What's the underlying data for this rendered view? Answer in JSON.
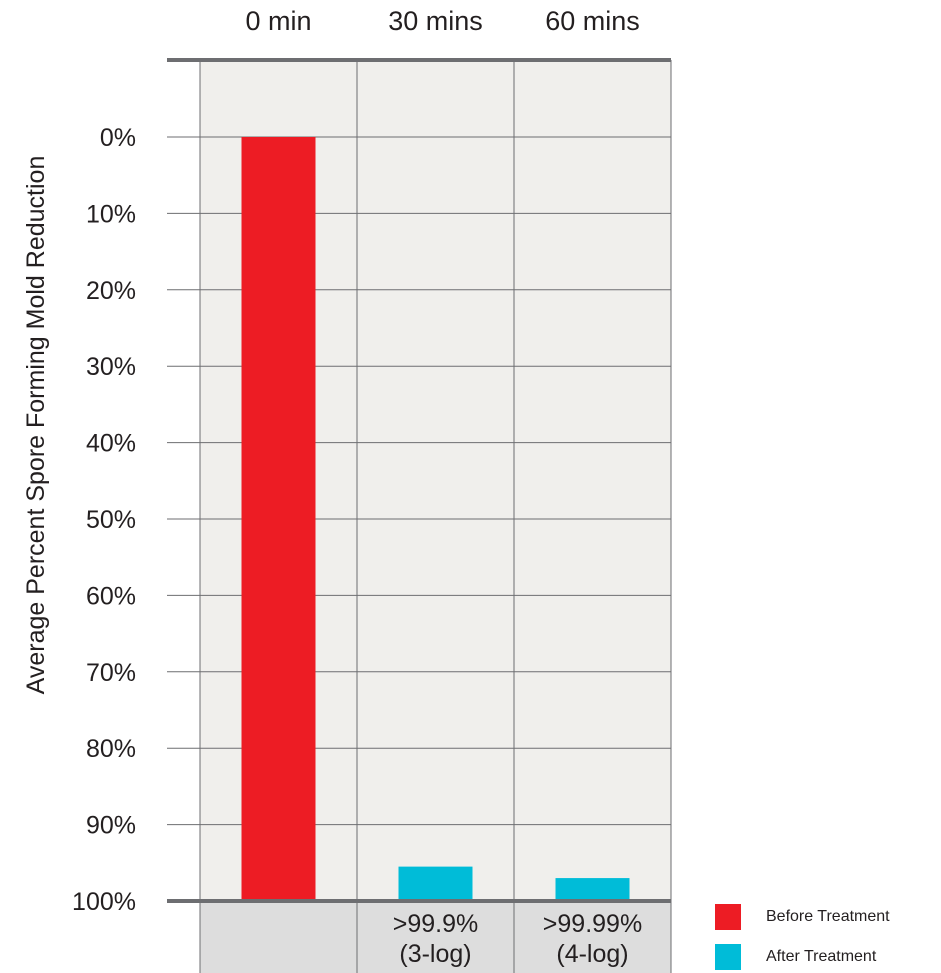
{
  "chart_data": {
    "type": "bar",
    "categories": [
      "0 min",
      "30 mins",
      "60 mins"
    ],
    "series": [
      {
        "name": "Before Treatment",
        "values": [
          100,
          null,
          null
        ]
      },
      {
        "name": "After Treatment",
        "values": [
          null,
          4.5,
          3.0
        ]
      }
    ],
    "ylabel": "Average Percent Spore Forming Mold Reduction",
    "xlabel": "",
    "title": "",
    "y_ticks": [
      "0%",
      "10%",
      "20%",
      "30%",
      "40%",
      "50%",
      "60%",
      "70%",
      "80%",
      "90%",
      "100%"
    ],
    "y_axis_inverted": true,
    "ylim": [
      0,
      100
    ],
    "grid": true,
    "legend_position": "bottom-right",
    "bottom_labels": [
      {
        "category": "30 mins",
        "lines": [
          ">99.9%",
          "(3-log)"
        ]
      },
      {
        "category": "60 mins",
        "lines": [
          ">99.99%",
          "(4-log)"
        ]
      }
    ]
  },
  "legend": [
    {
      "label": "Before Treatment",
      "color": "#ed1c24"
    },
    {
      "label": "After Treatment",
      "color": "#00bcd8"
    }
  ],
  "colors": {
    "plot_background": "#f0efec",
    "bottom_band": "#dddddd",
    "axis_line": "#6d6e71",
    "grid_line": "#6d6e71",
    "before": "#ed1c24",
    "after": "#00bcd8"
  }
}
